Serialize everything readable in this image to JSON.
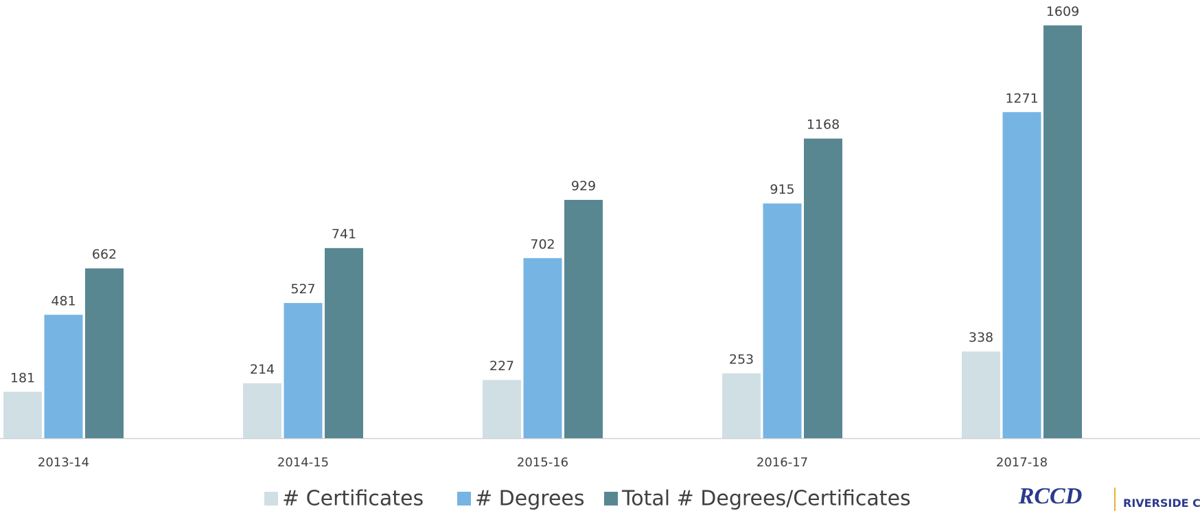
{
  "chart_data": {
    "type": "bar",
    "categories": [
      "2013-14",
      "2014-15",
      "2015-16",
      "2016-17",
      "2017-18"
    ],
    "series": [
      {
        "name": "# Certificates",
        "color": "#d0dfe4",
        "values": [
          181,
          214,
          227,
          253,
          338
        ]
      },
      {
        "name": "# Degrees",
        "color": "#76b4e3",
        "values": [
          481,
          527,
          702,
          915,
          1271
        ]
      },
      {
        "name": "Total # Degrees/Certificates",
        "color": "#588792",
        "values": [
          662,
          741,
          929,
          1168,
          1609
        ]
      }
    ],
    "logo": {
      "mark": "RCCD",
      "text": "RIVERSIDE C"
    }
  }
}
